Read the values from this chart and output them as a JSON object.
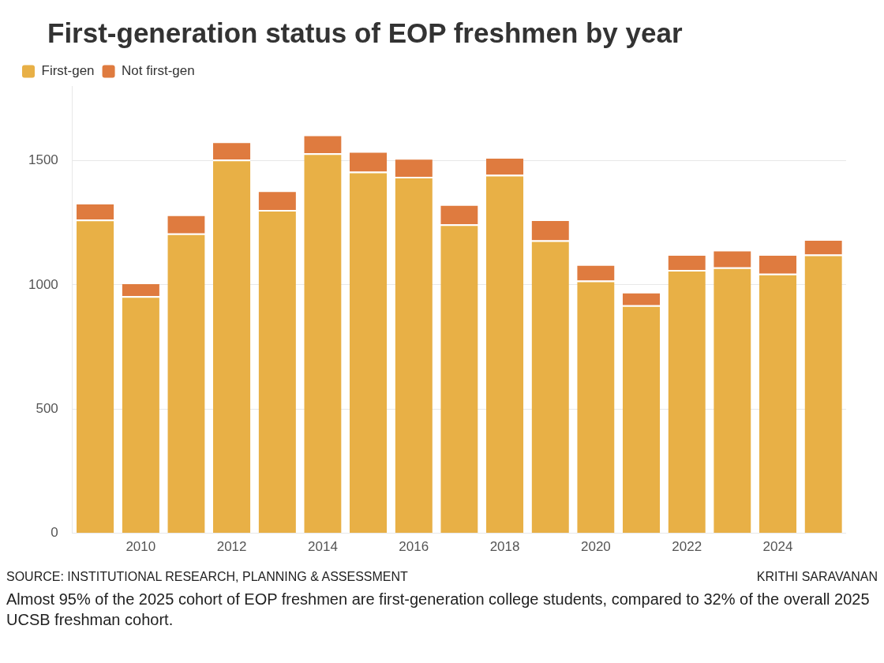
{
  "chart_data": {
    "type": "bar",
    "title": "First-generation status of EOP freshmen by year",
    "categories": [
      null,
      "2010",
      null,
      "2012",
      null,
      "2014",
      null,
      "2016",
      null,
      "2018",
      null,
      "2020",
      null,
      "2022",
      null,
      "2024",
      null
    ],
    "series": [
      {
        "name": "First-gen",
        "color": "#e8b046",
        "values": [
          1262,
          954,
          1207,
          1504,
          1301,
          1529,
          1455,
          1435,
          1243,
          1443,
          1179,
          1017,
          918,
          1060,
          1070,
          1045,
          1122
        ]
      },
      {
        "name": "Not first-gen",
        "color": "#df7b3f",
        "values": [
          68,
          55,
          76,
          73,
          79,
          76,
          83,
          75,
          81,
          71,
          84,
          66,
          54,
          63,
          71,
          78,
          62
        ]
      }
    ],
    "stacked": true,
    "ylim": [
      0,
      1800
    ],
    "yticks": [
      0,
      500,
      1000,
      1500
    ],
    "grid": "y",
    "legend": "top left",
    "annotations": [
      "SOURCE:  INSTITUTIONAL RESEARCH, PLANNING & ASSESSMENT",
      "KRITHI SARAVANAN",
      "Almost 95% of the 2025 cohort of EOP freshmen are first-generation college students, compared to 32% of the overall 2025 UCSB freshman cohort."
    ]
  }
}
